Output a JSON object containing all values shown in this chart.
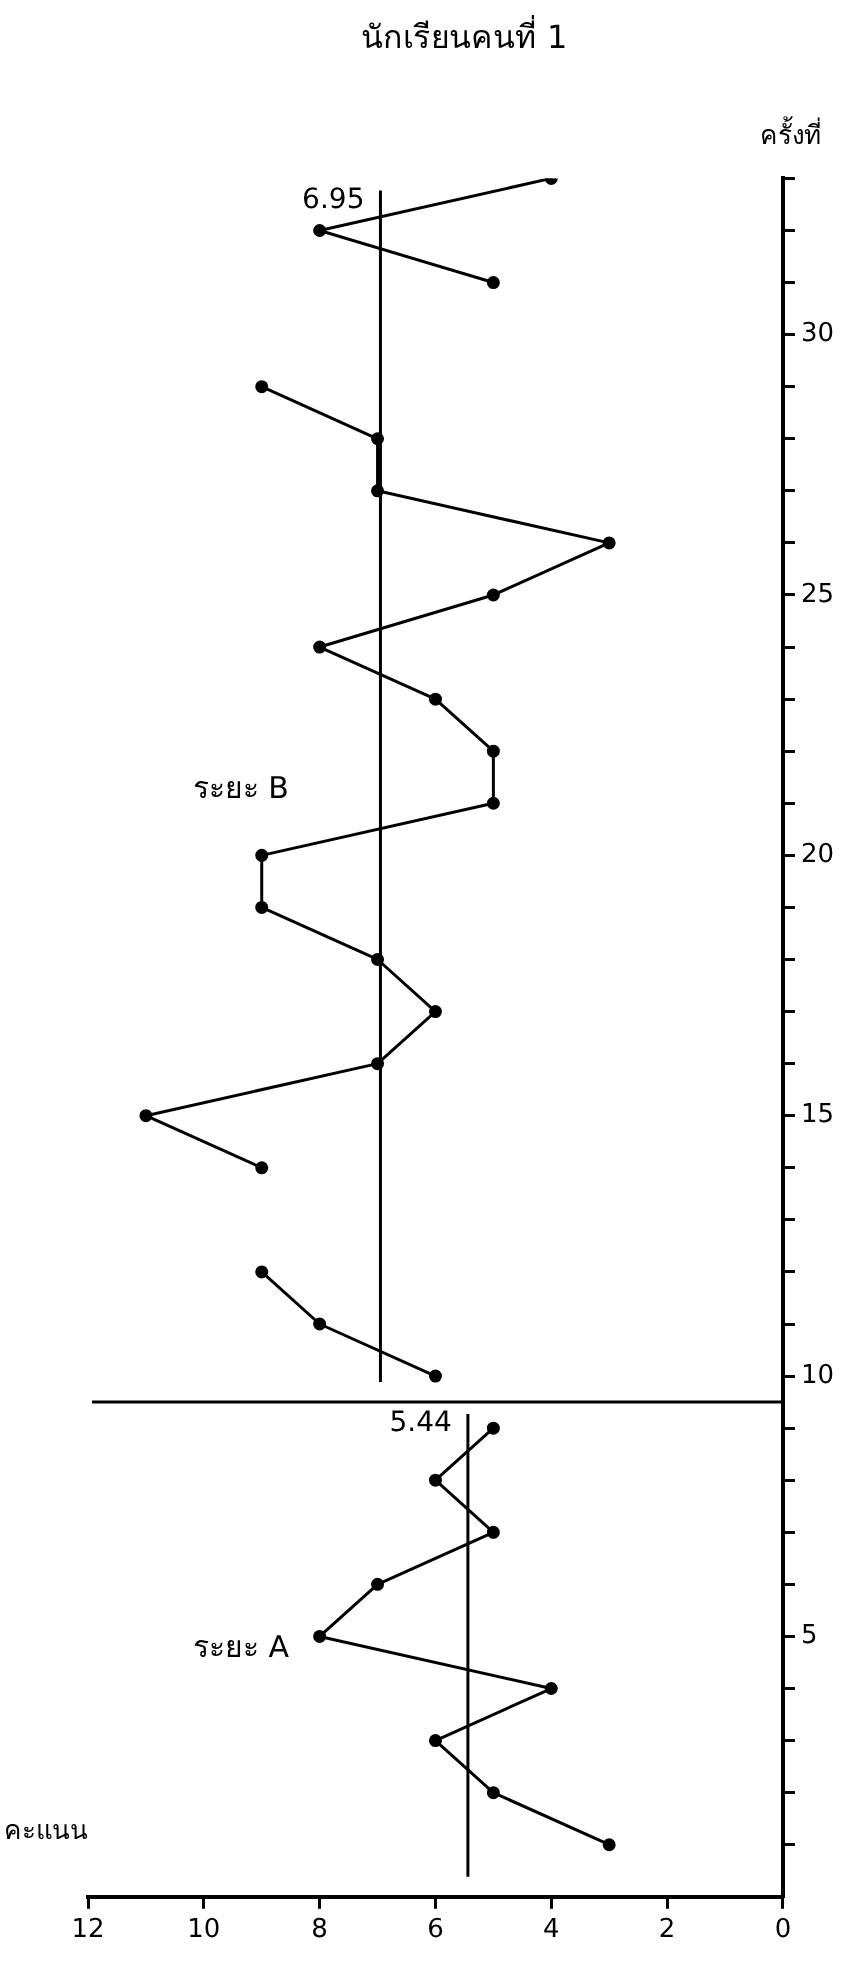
{
  "chart_data": {
    "type": "line",
    "title": "นักเรียนคนที่ 1",
    "xlabel": "คะแนน",
    "ylabel": "ครั้งที่",
    "series": [
      {
        "color": "#000000",
        "x": [
          3,
          5,
          6,
          4,
          8,
          7,
          5,
          6,
          5
        ],
        "values": [
          1,
          2,
          3,
          4,
          5,
          6,
          7,
          8,
          9
        ]
      },
      {
        "color": "#000000",
        "x": [
          6,
          8,
          9
        ],
        "values": [
          10,
          11,
          12
        ]
      },
      {
        "color": "#000000",
        "x": [
          9,
          11,
          7,
          6,
          7,
          9,
          9,
          5,
          5,
          6,
          8,
          5,
          3,
          7,
          7,
          9
        ],
        "values": [
          14,
          15,
          16,
          17,
          18,
          19,
          20,
          21,
          22,
          23,
          24,
          25,
          26,
          27,
          28,
          29
        ]
      },
      {
        "color": "#000000",
        "x": [
          5,
          8,
          4
        ],
        "values": [
          31,
          32,
          33
        ]
      }
    ],
    "xlim": [
      12,
      0
    ],
    "xticks": [
      12,
      10,
      8,
      6,
      4,
      2,
      0
    ],
    "ylim": [
      0,
      33
    ],
    "yticks": [
      {
        "value": 1,
        "label": null
      },
      {
        "value": 2,
        "label": null
      },
      {
        "value": 3,
        "label": null
      },
      {
        "value": 4,
        "label": null
      },
      5,
      {
        "value": 6,
        "label": null
      },
      {
        "value": 7,
        "label": null
      },
      {
        "value": 8,
        "label": null
      },
      {
        "value": 9,
        "label": null
      },
      10,
      {
        "value": 11,
        "label": null
      },
      {
        "value": 12,
        "label": null
      },
      {
        "value": 13,
        "label": null
      },
      {
        "value": 14,
        "label": null
      },
      15,
      {
        "value": 16,
        "label": null
      },
      {
        "value": 17,
        "label": null
      },
      {
        "value": 18,
        "label": null
      },
      {
        "value": 19,
        "label": null
      },
      20,
      {
        "value": 21,
        "label": null
      },
      {
        "value": 22,
        "label": null
      },
      {
        "value": 23,
        "label": null
      },
      {
        "value": 24,
        "label": null
      },
      25,
      {
        "value": 26,
        "label": null
      },
      {
        "value": 27,
        "label": null
      },
      {
        "value": 28,
        "label": null
      },
      {
        "value": 29,
        "label": null
      },
      30,
      {
        "value": 31,
        "label": null
      },
      {
        "value": 32,
        "label": null
      },
      {
        "value": 33,
        "label": null
      }
    ],
    "ref_lines": [
      {
        "axis": "y",
        "value": 9.5
      },
      {
        "axis": "x",
        "value": 5.44,
        "label": "5.44"
      },
      {
        "axis": "x",
        "value": 6.95,
        "label": "6.95"
      }
    ],
    "annotations": [
      "ระยะ A",
      "ระยะ B"
    ],
    "marker": "circle",
    "line_style": "solid"
  }
}
